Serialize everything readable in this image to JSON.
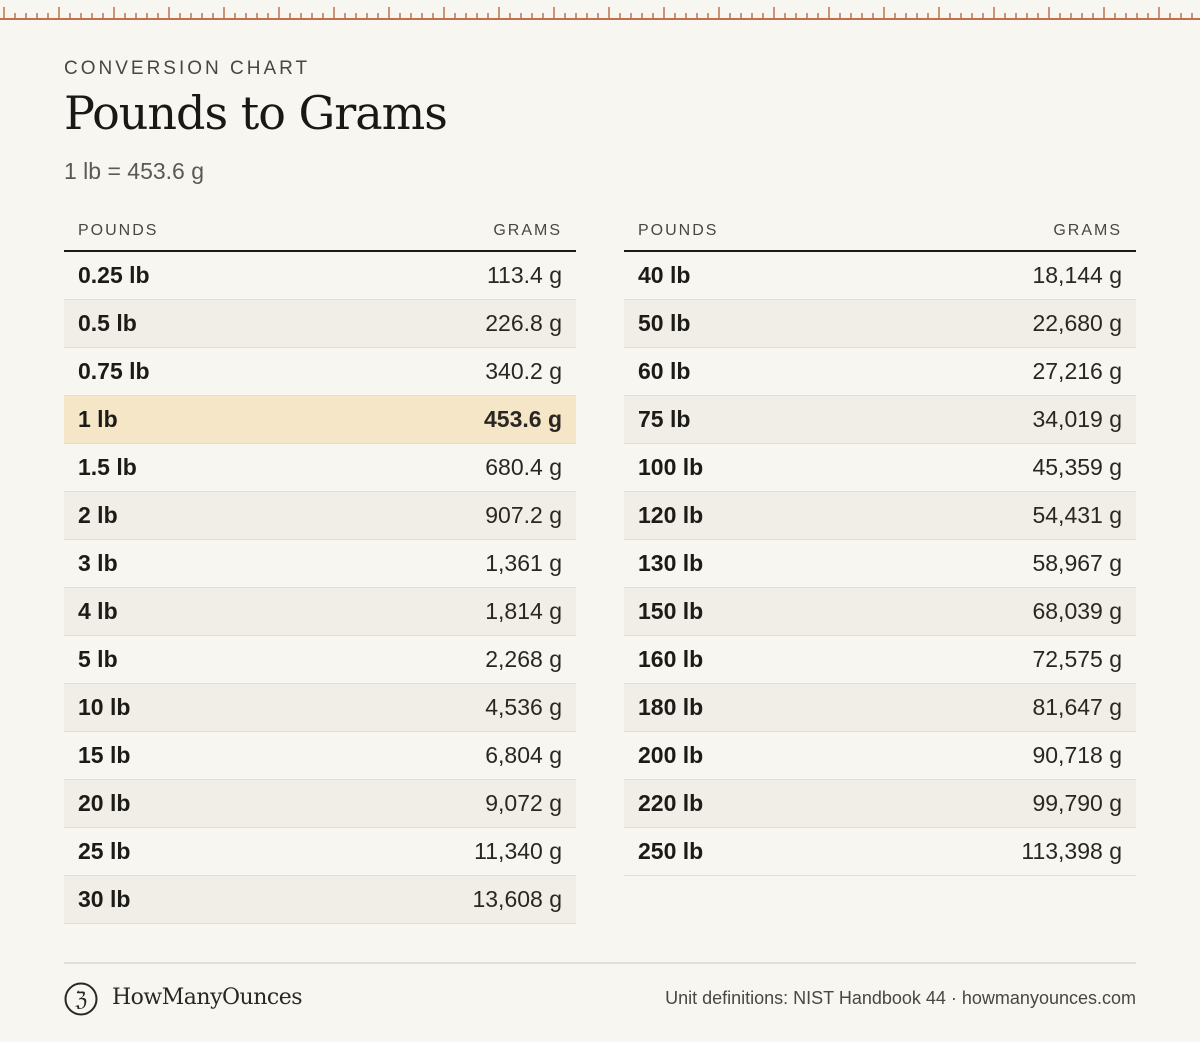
{
  "colors": {
    "accent": "#c0704a",
    "highlight_row": "#f4e6c6",
    "background": "#f8f6f1"
  },
  "header": {
    "eyebrow": "CONVERSION CHART",
    "title": "Pounds to Grams",
    "subtitle": "1 lb = 453.6 g"
  },
  "table_left": {
    "col_pounds": "POUNDS",
    "col_grams": "GRAMS",
    "rows": [
      {
        "lb": "0.25 lb",
        "g": "113.4 g"
      },
      {
        "lb": "0.5 lb",
        "g": "226.8 g"
      },
      {
        "lb": "0.75 lb",
        "g": "340.2 g"
      },
      {
        "lb": "1 lb",
        "g": "453.6 g",
        "highlight": true
      },
      {
        "lb": "1.5 lb",
        "g": "680.4 g"
      },
      {
        "lb": "2 lb",
        "g": "907.2 g"
      },
      {
        "lb": "3 lb",
        "g": "1,361 g"
      },
      {
        "lb": "4 lb",
        "g": "1,814 g"
      },
      {
        "lb": "5 lb",
        "g": "2,268 g"
      },
      {
        "lb": "10 lb",
        "g": "4,536 g"
      },
      {
        "lb": "15 lb",
        "g": "6,804 g"
      },
      {
        "lb": "20 lb",
        "g": "9,072 g"
      },
      {
        "lb": "25 lb",
        "g": "11,340 g"
      },
      {
        "lb": "30 lb",
        "g": "13,608 g"
      }
    ]
  },
  "table_right": {
    "col_pounds": "POUNDS",
    "col_grams": "GRAMS",
    "rows": [
      {
        "lb": "40 lb",
        "g": "18,144 g"
      },
      {
        "lb": "50 lb",
        "g": "22,680 g"
      },
      {
        "lb": "60 lb",
        "g": "27,216 g"
      },
      {
        "lb": "75 lb",
        "g": "34,019 g"
      },
      {
        "lb": "100 lb",
        "g": "45,359 g"
      },
      {
        "lb": "120 lb",
        "g": "54,431 g"
      },
      {
        "lb": "130 lb",
        "g": "58,967 g"
      },
      {
        "lb": "150 lb",
        "g": "68,039 g"
      },
      {
        "lb": "160 lb",
        "g": "72,575 g"
      },
      {
        "lb": "180 lb",
        "g": "81,647 g"
      },
      {
        "lb": "200 lb",
        "g": "90,718 g"
      },
      {
        "lb": "220 lb",
        "g": "99,790 g"
      },
      {
        "lb": "250 lb",
        "g": "113,398 g"
      }
    ]
  },
  "footer": {
    "logo_icon": "scale-logo-icon",
    "logo_glyph": "ℨ",
    "brand": "HowManyOunces",
    "source": "Unit definitions: NIST Handbook 44 · howmanyounces.com"
  }
}
